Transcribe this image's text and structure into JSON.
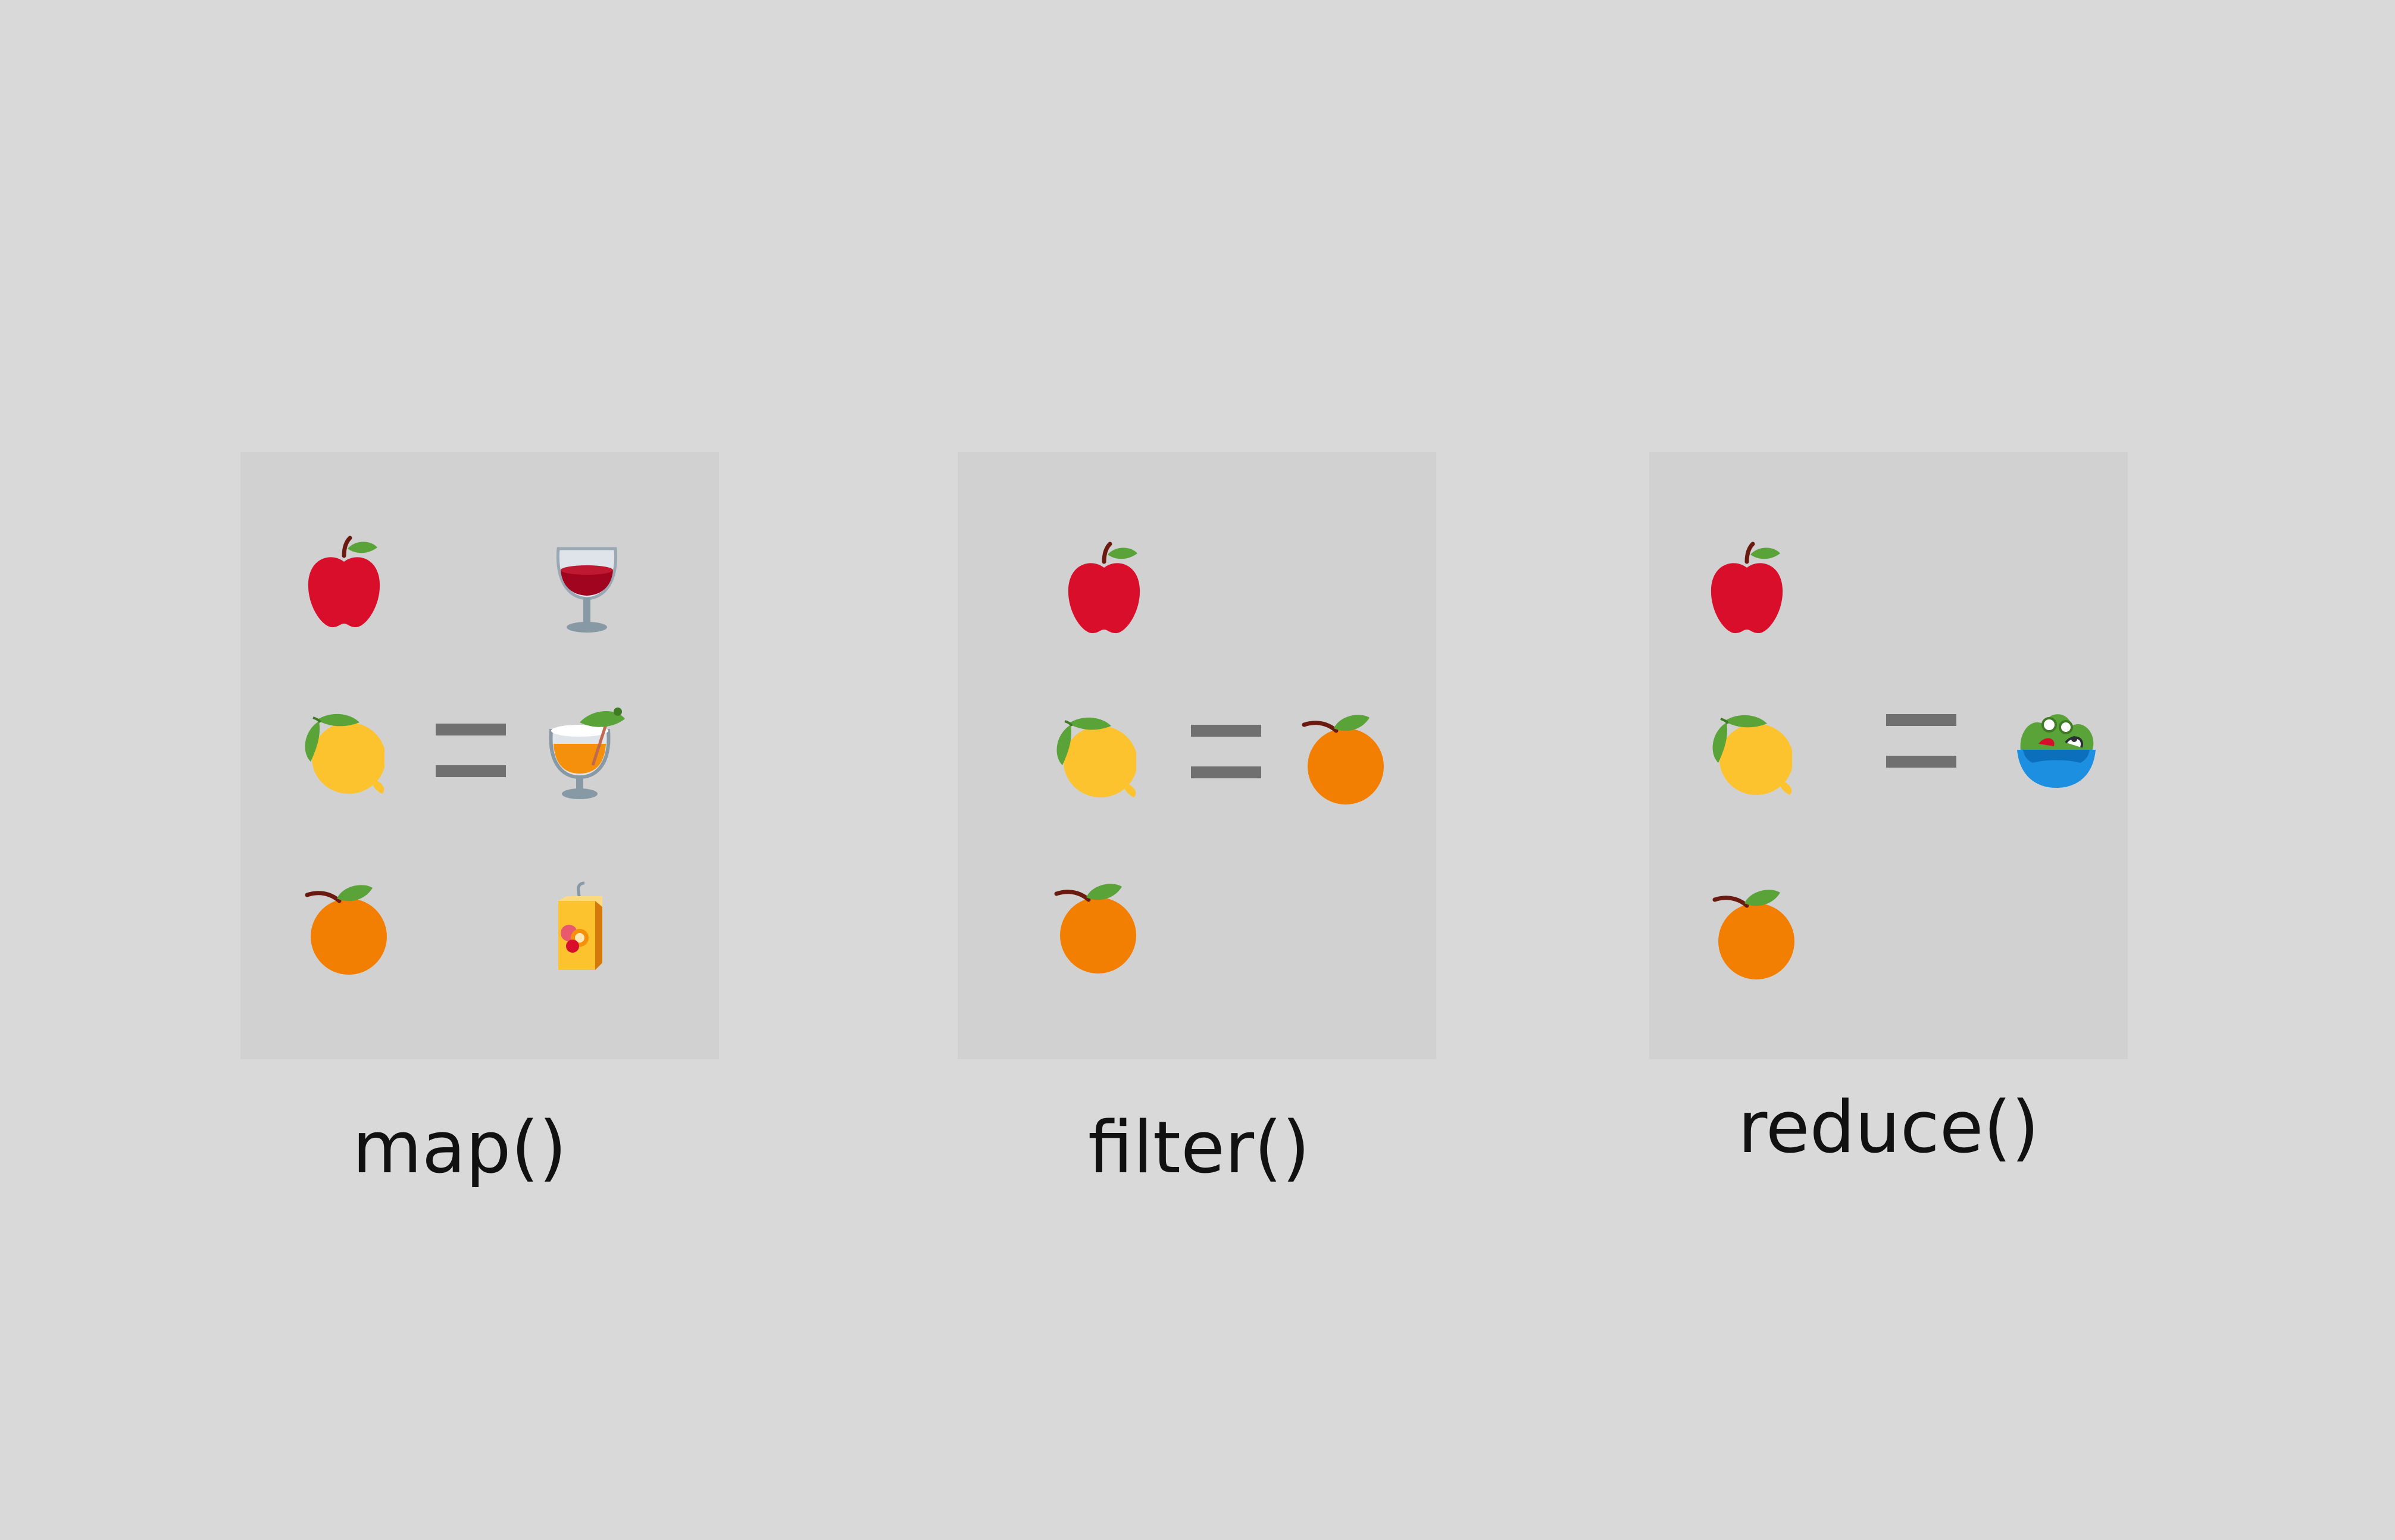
{
  "panels": [
    {
      "id": "map",
      "label": "map()",
      "inputs": [
        "red-apple-icon",
        "lemon-icon",
        "orange-icon"
      ],
      "equals": "=",
      "outputs": [
        "wine-glass-icon",
        "tropical-drink-icon",
        "juice-box-icon"
      ]
    },
    {
      "id": "filter",
      "label": "filter()",
      "inputs": [
        "red-apple-icon",
        "lemon-icon",
        "orange-icon"
      ],
      "equals": "=",
      "outputs": [
        "orange-icon"
      ]
    },
    {
      "id": "reduce",
      "label": "reduce()",
      "inputs": [
        "red-apple-icon",
        "lemon-icon",
        "orange-icon"
      ],
      "equals": "=",
      "outputs": [
        "green-salad-icon"
      ]
    }
  ],
  "colors": {
    "background": "#d9d9d9",
    "panel": "#d1d1d1",
    "equals_sign": "#707070",
    "label_text": "#111111",
    "apple": "#d90e2b",
    "lemon": "#fdc32e",
    "orange": "#f37f02",
    "leaf": "#5aa339"
  }
}
